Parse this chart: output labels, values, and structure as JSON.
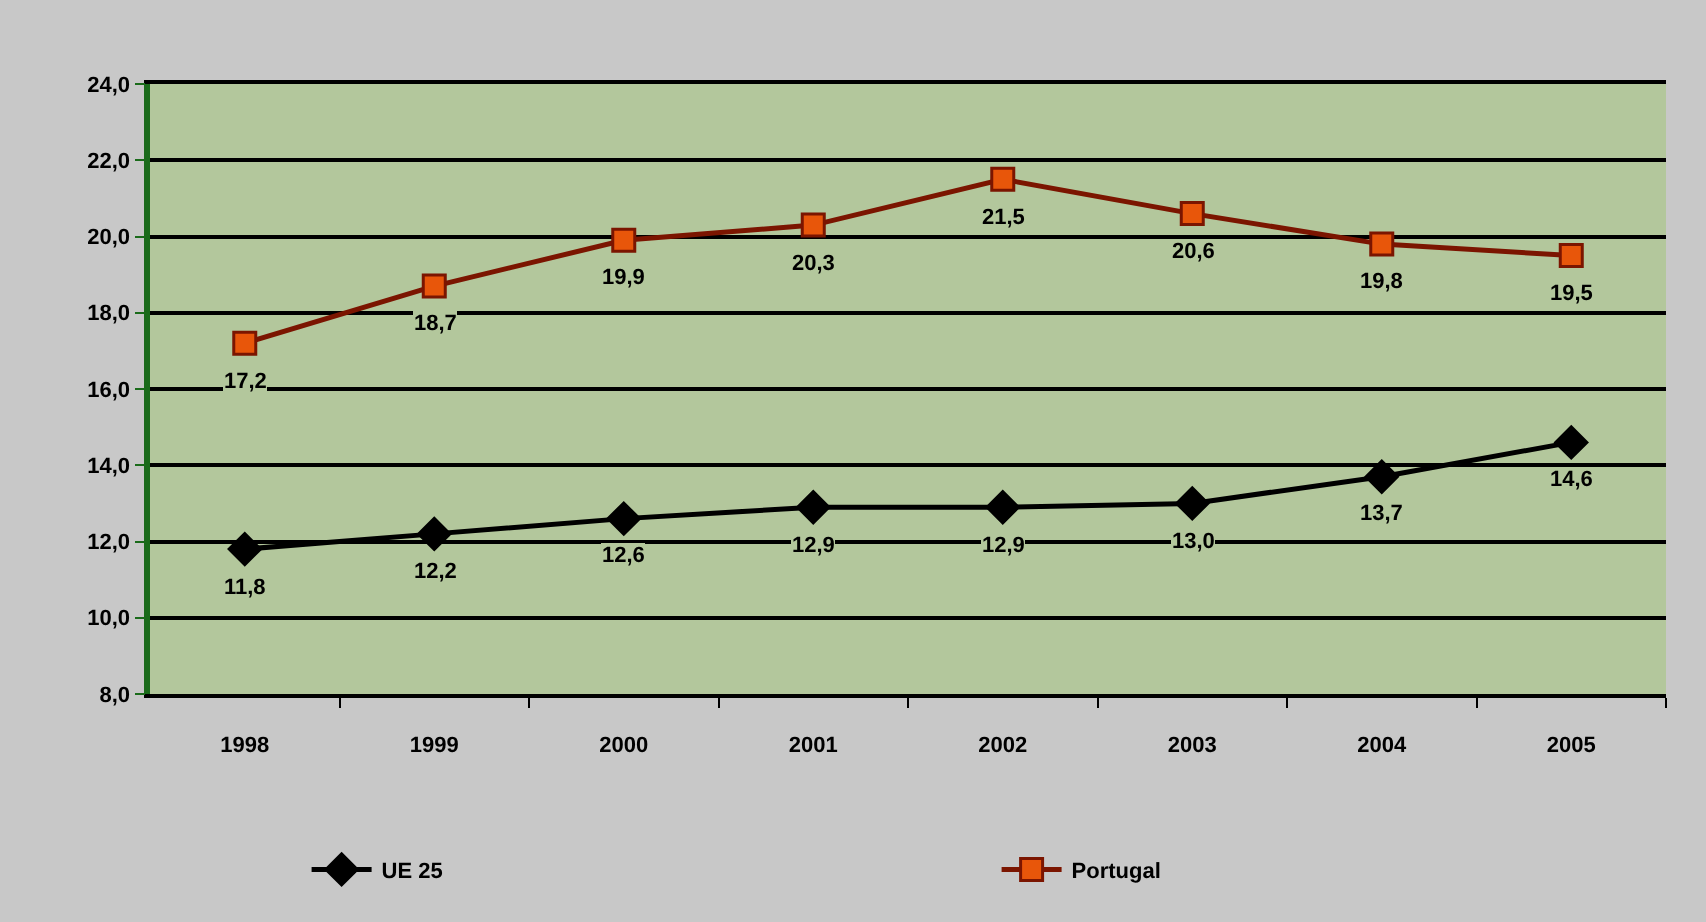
{
  "chart_data": {
    "type": "line",
    "categories": [
      "1998",
      "1999",
      "2000",
      "2001",
      "2002",
      "2003",
      "2004",
      "2005"
    ],
    "series": [
      {
        "name": "UE 25",
        "color": "#000000",
        "marker": "diamond",
        "values": [
          11.8,
          12.2,
          12.6,
          12.9,
          12.9,
          13.0,
          13.7,
          14.6
        ],
        "value_labels": [
          "11,8",
          "12,2",
          "12,6",
          "12,9",
          "12,9",
          "13,0",
          "13,7",
          "14,6"
        ]
      },
      {
        "name": "Portugal",
        "color": "#7b1500",
        "marker": "square",
        "values": [
          17.2,
          18.7,
          19.9,
          20.3,
          21.5,
          20.6,
          19.8,
          19.5
        ],
        "value_labels": [
          "17,2",
          "18,7",
          "19,9",
          "20,3",
          "21,5",
          "20,6",
          "19,8",
          "19,5"
        ]
      }
    ],
    "ylim": [
      8,
      24
    ],
    "yticks": [
      {
        "value": 8,
        "label": "8,0"
      },
      {
        "value": 10,
        "label": "10,0"
      },
      {
        "value": 12,
        "label": "12,0"
      },
      {
        "value": 14,
        "label": "14,0"
      },
      {
        "value": 16,
        "label": "16,0"
      },
      {
        "value": 18,
        "label": "18,0"
      },
      {
        "value": 20,
        "label": "20,0"
      },
      {
        "value": 22,
        "label": "22,0"
      },
      {
        "value": 24,
        "label": "24,0"
      }
    ],
    "grid": "y",
    "legend": "bottom",
    "line_style": "solid"
  }
}
